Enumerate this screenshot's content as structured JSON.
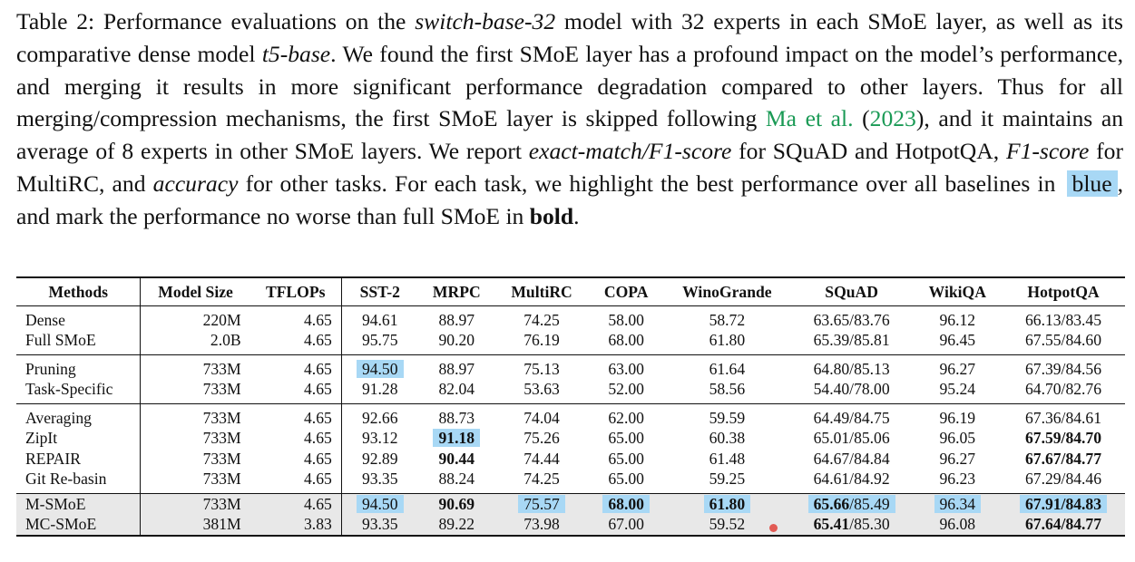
{
  "caption": {
    "p1": "Table 2: Performance evaluations on the ",
    "model_name": "switch-base-32",
    "p2": " model with 32 experts in each SMoE layer, as well as its comparative dense model ",
    "dense_model": "t5-base",
    "p3": ". We found the first SMoE layer has a profound impact on the model’s performance, and merging it results in more significant performance degradation compared to other layers. Thus for all merging/compression mechanisms, the first SMoE layer is skipped following ",
    "cite_author": "Ma et al.",
    "cite_open": " (",
    "cite_year": "2023",
    "p4": "), and it maintains an average of 8 experts in other SMoE layers. We report ",
    "metric1": "exact-match/F1-score",
    "p5": " for SQuAD and HotpotQA, ",
    "metric2": "F1-score",
    "p6": " for MultiRC, and ",
    "metric3": "accuracy",
    "p7": " for other tasks. For each task, we highlight the best performance over all baselines in ",
    "highlight_word": "blue",
    "p8": ", and mark the performance no worse than full SMoE in ",
    "bold_word": "bold",
    "p9": "."
  },
  "table": {
    "headers": [
      "Methods",
      "Model Size",
      "TFLOPs",
      "SST-2",
      "MRPC",
      "MultiRC",
      "COPA",
      "WinoGrande",
      "SQuAD",
      "WikiQA",
      "HotpotQA"
    ],
    "groups": [
      {
        "rows": [
          {
            "cells": [
              "Dense",
              "220M",
              "4.65",
              "94.61",
              "88.97",
              "74.25",
              "58.00",
              "58.72",
              "63.65/83.76",
              "96.12",
              "66.13/83.45"
            ]
          },
          {
            "cells": [
              "Full SMoE",
              "2.0B",
              "4.65",
              "95.75",
              "90.20",
              "76.19",
              "68.00",
              "61.80",
              "65.39/85.81",
              "96.45",
              "67.55/84.60"
            ]
          }
        ]
      },
      {
        "rows": [
          {
            "cells": [
              "Pruning",
              "733M",
              "4.65",
              "94.50",
              "88.97",
              "75.13",
              "63.00",
              "61.64",
              "64.80/85.13",
              "96.27",
              "67.39/84.56"
            ]
          },
          {
            "cells": [
              "Task-Specific",
              "733M",
              "4.65",
              "91.28",
              "82.04",
              "53.63",
              "52.00",
              "58.56",
              "54.40/78.00",
              "95.24",
              "64.70/82.76"
            ]
          }
        ]
      },
      {
        "rows": [
          {
            "cells": [
              "Averaging",
              "733M",
              "4.65",
              "92.66",
              "88.73",
              "74.04",
              "62.00",
              "59.59",
              "64.49/84.75",
              "96.19",
              "67.36/84.61"
            ]
          },
          {
            "cells": [
              "ZipIt",
              "733M",
              "4.65",
              "93.12",
              "91.18",
              "75.26",
              "65.00",
              "60.38",
              "65.01/85.06",
              "96.05",
              "67.59/84.70"
            ]
          },
          {
            "cells": [
              "REPAIR",
              "733M",
              "4.65",
              "92.89",
              "90.44",
              "74.44",
              "65.00",
              "61.48",
              "64.67/84.84",
              "96.27",
              "67.67/84.77"
            ]
          },
          {
            "cells": [
              "Git Re-basin",
              "733M",
              "4.65",
              "93.35",
              "88.24",
              "74.25",
              "65.00",
              "59.25",
              "64.61/84.92",
              "96.23",
              "67.29/84.46"
            ]
          }
        ]
      }
    ],
    "final_rows": [
      {
        "cells": [
          "M-SMoE",
          "733M",
          "4.65",
          "94.50",
          "90.69",
          "75.57",
          "68.00",
          "61.80",
          "65.66",
          "96.34",
          "67.91/84.83"
        ],
        "squad_f1": "/85.49"
      },
      {
        "cells": [
          "MC-SMoE",
          "381M",
          "3.83",
          "93.35",
          "89.22",
          "73.98",
          "67.00",
          "59.52",
          "65.41",
          "96.08",
          "67.64/84.77"
        ],
        "squad_f1": "/85.30"
      }
    ]
  }
}
